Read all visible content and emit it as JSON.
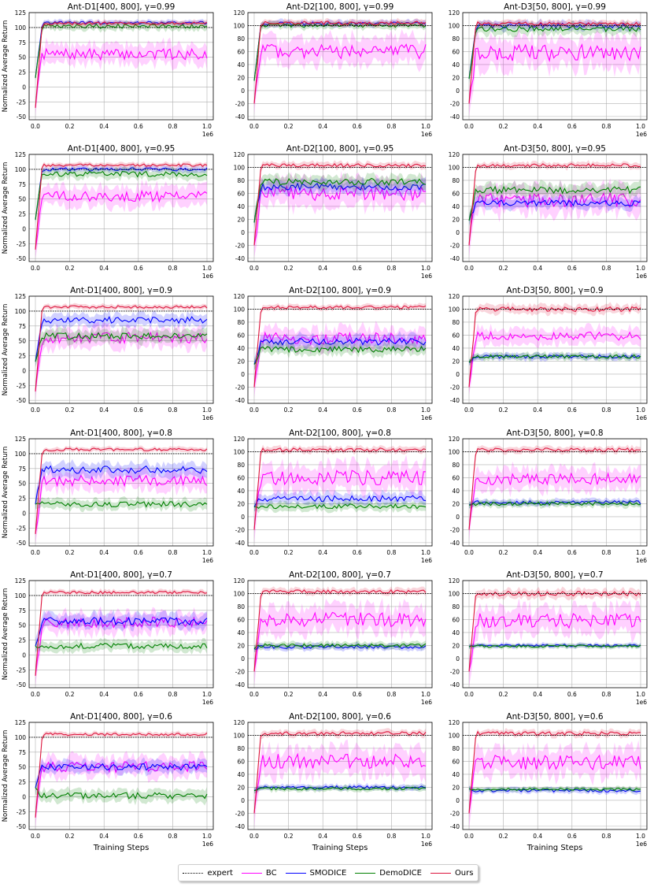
{
  "figure": {
    "ylabel": "Normalized Average Return",
    "xlabel": "Training Steps",
    "x_multiplier": "1e6",
    "x_ticks": [
      "0.0",
      "0.2",
      "0.4",
      "0.6",
      "0.8",
      "1.0"
    ]
  },
  "legend": [
    {
      "name": "expert",
      "color": "#000000",
      "style": "dotted"
    },
    {
      "name": "BC",
      "color": "#ff00ff",
      "style": "solid"
    },
    {
      "name": "SMODICE",
      "color": "#0000ff",
      "style": "solid"
    },
    {
      "name": "DemoDICE",
      "color": "#008000",
      "style": "solid"
    },
    {
      "name": "Ours",
      "color": "#dc143c",
      "style": "solid"
    }
  ],
  "chart_data": [
    {
      "type": "line",
      "title": "Ant-D1[400, 800], γ=0.99",
      "ylim": [
        -55,
        125
      ],
      "yticks": [
        -50,
        -25,
        0,
        25,
        50,
        75,
        100,
        125
      ],
      "expert": 100,
      "summary": {
        "BC": {
          "start": -35,
          "final": 55,
          "band": 20
        },
        "SMODICE": {
          "start": 15,
          "final": 108,
          "band": 5
        },
        "DemoDICE": {
          "start": 15,
          "final": 102,
          "band": 8
        },
        "Ours": {
          "start": -35,
          "final": 107,
          "band": 5
        }
      }
    },
    {
      "type": "line",
      "title": "Ant-D2[100, 800], γ=0.99",
      "ylim": [
        -45,
        120
      ],
      "yticks": [
        -40,
        -20,
        0,
        20,
        40,
        60,
        80,
        100,
        120
      ],
      "expert": 100,
      "summary": {
        "BC": {
          "start": -20,
          "final": 60,
          "band": 25
        },
        "SMODICE": {
          "start": 15,
          "final": 103,
          "band": 6
        },
        "DemoDICE": {
          "start": 15,
          "final": 100,
          "band": 6
        },
        "Ours": {
          "start": -20,
          "final": 104,
          "band": 6
        }
      }
    },
    {
      "type": "line",
      "title": "Ant-D3[50, 800], γ=0.99",
      "ylim": [
        -45,
        120
      ],
      "yticks": [
        -40,
        -20,
        0,
        20,
        40,
        60,
        80,
        100,
        120
      ],
      "expert": 100,
      "summary": {
        "BC": {
          "start": -20,
          "final": 58,
          "band": 28
        },
        "SMODICE": {
          "start": 18,
          "final": 100,
          "band": 8
        },
        "DemoDICE": {
          "start": 18,
          "final": 95,
          "band": 10
        },
        "Ours": {
          "start": -20,
          "final": 103,
          "band": 6
        }
      }
    },
    {
      "type": "line",
      "title": "Ant-D1[400, 800], γ=0.95",
      "ylim": [
        -55,
        125
      ],
      "yticks": [
        -50,
        -25,
        0,
        25,
        50,
        75,
        100,
        125
      ],
      "expert": 100,
      "summary": {
        "BC": {
          "start": -35,
          "final": 55,
          "band": 20
        },
        "SMODICE": {
          "start": 15,
          "final": 100,
          "band": 6
        },
        "DemoDICE": {
          "start": 15,
          "final": 92,
          "band": 10
        },
        "Ours": {
          "start": -35,
          "final": 107,
          "band": 5
        }
      }
    },
    {
      "type": "line",
      "title": "Ant-D2[100, 800], γ=0.95",
      "ylim": [
        -45,
        120
      ],
      "yticks": [
        -40,
        -20,
        0,
        20,
        40,
        60,
        80,
        100,
        120
      ],
      "expert": 100,
      "summary": {
        "BC": {
          "start": -20,
          "final": 60,
          "band": 25
        },
        "SMODICE": {
          "start": 15,
          "final": 70,
          "band": 12
        },
        "DemoDICE": {
          "start": 15,
          "final": 78,
          "band": 12
        },
        "Ours": {
          "start": -20,
          "final": 103,
          "band": 6
        }
      }
    },
    {
      "type": "line",
      "title": "Ant-D3[50, 800], γ=0.95",
      "ylim": [
        -45,
        120
      ],
      "yticks": [
        -40,
        -20,
        0,
        20,
        40,
        60,
        80,
        100,
        120
      ],
      "expert": 100,
      "summary": {
        "BC": {
          "start": -20,
          "final": 50,
          "band": 25
        },
        "SMODICE": {
          "start": 18,
          "final": 45,
          "band": 10
        },
        "DemoDICE": {
          "start": 18,
          "final": 65,
          "band": 12
        },
        "Ours": {
          "start": -20,
          "final": 103,
          "band": 6
        }
      }
    },
    {
      "type": "line",
      "title": "Ant-D1[400, 800], γ=0.9",
      "ylim": [
        -55,
        125
      ],
      "yticks": [
        -50,
        -25,
        0,
        25,
        50,
        75,
        100,
        125
      ],
      "expert": 100,
      "summary": {
        "BC": {
          "start": -35,
          "final": 55,
          "band": 20
        },
        "SMODICE": {
          "start": 15,
          "final": 85,
          "band": 12
        },
        "DemoDICE": {
          "start": 15,
          "final": 58,
          "band": 12
        },
        "Ours": {
          "start": -35,
          "final": 107,
          "band": 5
        }
      }
    },
    {
      "type": "line",
      "title": "Ant-D2[100, 800], γ=0.9",
      "ylim": [
        -45,
        120
      ],
      "yticks": [
        -40,
        -20,
        0,
        20,
        40,
        60,
        80,
        100,
        120
      ],
      "expert": 100,
      "summary": {
        "BC": {
          "start": -20,
          "final": 55,
          "band": 20
        },
        "SMODICE": {
          "start": 15,
          "final": 50,
          "band": 12
        },
        "DemoDICE": {
          "start": 15,
          "final": 38,
          "band": 10
        },
        "Ours": {
          "start": -20,
          "final": 103,
          "band": 5
        }
      }
    },
    {
      "type": "line",
      "title": "Ant-D3[50, 800], γ=0.9",
      "ylim": [
        -45,
        120
      ],
      "yticks": [
        -40,
        -20,
        0,
        20,
        40,
        60,
        80,
        100,
        120
      ],
      "expert": 100,
      "summary": {
        "BC": {
          "start": -20,
          "final": 58,
          "band": 15
        },
        "SMODICE": {
          "start": 18,
          "final": 27,
          "band": 6
        },
        "DemoDICE": {
          "start": 18,
          "final": 27,
          "band": 6
        },
        "Ours": {
          "start": -20,
          "final": 100,
          "band": 8
        }
      }
    },
    {
      "type": "line",
      "title": "Ant-D1[400, 800], γ=0.8",
      "ylim": [
        -55,
        125
      ],
      "yticks": [
        -50,
        -25,
        0,
        25,
        50,
        75,
        100,
        125
      ],
      "expert": 100,
      "summary": {
        "BC": {
          "start": -35,
          "final": 55,
          "band": 20
        },
        "SMODICE": {
          "start": 15,
          "final": 73,
          "band": 14
        },
        "DemoDICE": {
          "start": 15,
          "final": 15,
          "band": 10
        },
        "Ours": {
          "start": -35,
          "final": 107,
          "band": 5
        }
      }
    },
    {
      "type": "line",
      "title": "Ant-D2[100, 800], γ=0.8",
      "ylim": [
        -45,
        120
      ],
      "yticks": [
        -40,
        -20,
        0,
        20,
        40,
        60,
        80,
        100,
        120
      ],
      "expert": 100,
      "summary": {
        "BC": {
          "start": -20,
          "final": 60,
          "band": 25
        },
        "SMODICE": {
          "start": 15,
          "final": 28,
          "band": 10
        },
        "DemoDICE": {
          "start": 15,
          "final": 16,
          "band": 8
        },
        "Ours": {
          "start": -20,
          "final": 103,
          "band": 6
        }
      }
    },
    {
      "type": "line",
      "title": "Ant-D3[50, 800], γ=0.8",
      "ylim": [
        -45,
        120
      ],
      "yticks": [
        -40,
        -20,
        0,
        20,
        40,
        60,
        80,
        100,
        120
      ],
      "expert": 100,
      "summary": {
        "BC": {
          "start": -20,
          "final": 58,
          "band": 20
        },
        "SMODICE": {
          "start": 18,
          "final": 22,
          "band": 6
        },
        "DemoDICE": {
          "start": 18,
          "final": 20,
          "band": 6
        },
        "Ours": {
          "start": -20,
          "final": 103,
          "band": 6
        }
      }
    },
    {
      "type": "line",
      "title": "Ant-D1[400, 800], γ=0.7",
      "ylim": [
        -55,
        125
      ],
      "yticks": [
        -50,
        -25,
        0,
        25,
        50,
        75,
        100,
        125
      ],
      "expert": 100,
      "summary": {
        "BC": {
          "start": -35,
          "final": 55,
          "band": 20
        },
        "SMODICE": {
          "start": 15,
          "final": 57,
          "band": 14
        },
        "DemoDICE": {
          "start": 15,
          "final": 15,
          "band": 10
        },
        "Ours": {
          "start": -35,
          "final": 105,
          "band": 5
        }
      }
    },
    {
      "type": "line",
      "title": "Ant-D2[100, 800], γ=0.7",
      "ylim": [
        -45,
        120
      ],
      "yticks": [
        -40,
        -20,
        0,
        20,
        40,
        60,
        80,
        100,
        120
      ],
      "expert": 100,
      "summary": {
        "BC": {
          "start": -20,
          "final": 60,
          "band": 25
        },
        "SMODICE": {
          "start": 15,
          "final": 18,
          "band": 6
        },
        "DemoDICE": {
          "start": 15,
          "final": 20,
          "band": 6
        },
        "Ours": {
          "start": -20,
          "final": 103,
          "band": 6
        }
      }
    },
    {
      "type": "line",
      "title": "Ant-D3[50, 800], γ=0.7",
      "ylim": [
        -45,
        120
      ],
      "yticks": [
        -40,
        -20,
        0,
        20,
        40,
        60,
        80,
        100,
        120
      ],
      "expert": 100,
      "summary": {
        "BC": {
          "start": -20,
          "final": 58,
          "band": 25
        },
        "SMODICE": {
          "start": 18,
          "final": 20,
          "band": 4
        },
        "DemoDICE": {
          "start": 18,
          "final": 19,
          "band": 4
        },
        "Ours": {
          "start": -20,
          "final": 100,
          "band": 8
        }
      }
    },
    {
      "type": "line",
      "title": "Ant-D1[400, 800], γ=0.6",
      "ylim": [
        -55,
        125
      ],
      "yticks": [
        -50,
        -25,
        0,
        25,
        50,
        75,
        100,
        125
      ],
      "expert": 100,
      "summary": {
        "BC": {
          "start": -35,
          "final": 50,
          "band": 20
        },
        "SMODICE": {
          "start": 15,
          "final": 50,
          "band": 12
        },
        "DemoDICE": {
          "start": 15,
          "final": 2,
          "band": 12
        },
        "Ours": {
          "start": -35,
          "final": 105,
          "band": 5
        }
      }
    },
    {
      "type": "line",
      "title": "Ant-D2[100, 800], γ=0.6",
      "ylim": [
        -45,
        120
      ],
      "yticks": [
        -40,
        -20,
        0,
        20,
        40,
        60,
        80,
        100,
        120
      ],
      "expert": 100,
      "summary": {
        "BC": {
          "start": -20,
          "final": 60,
          "band": 25
        },
        "SMODICE": {
          "start": 15,
          "final": 20,
          "band": 5
        },
        "DemoDICE": {
          "start": 15,
          "final": 18,
          "band": 5
        },
        "Ours": {
          "start": -20,
          "final": 103,
          "band": 6
        }
      }
    },
    {
      "type": "line",
      "title": "Ant-D3[50, 800], γ=0.6",
      "ylim": [
        -45,
        120
      ],
      "yticks": [
        -40,
        -20,
        0,
        20,
        40,
        60,
        80,
        100,
        120
      ],
      "expert": 100,
      "summary": {
        "BC": {
          "start": -20,
          "final": 58,
          "band": 25
        },
        "SMODICE": {
          "start": 18,
          "final": 15,
          "band": 5
        },
        "DemoDICE": {
          "start": 18,
          "final": 17,
          "band": 4
        },
        "Ours": {
          "start": -20,
          "final": 103,
          "band": 6
        }
      }
    }
  ]
}
